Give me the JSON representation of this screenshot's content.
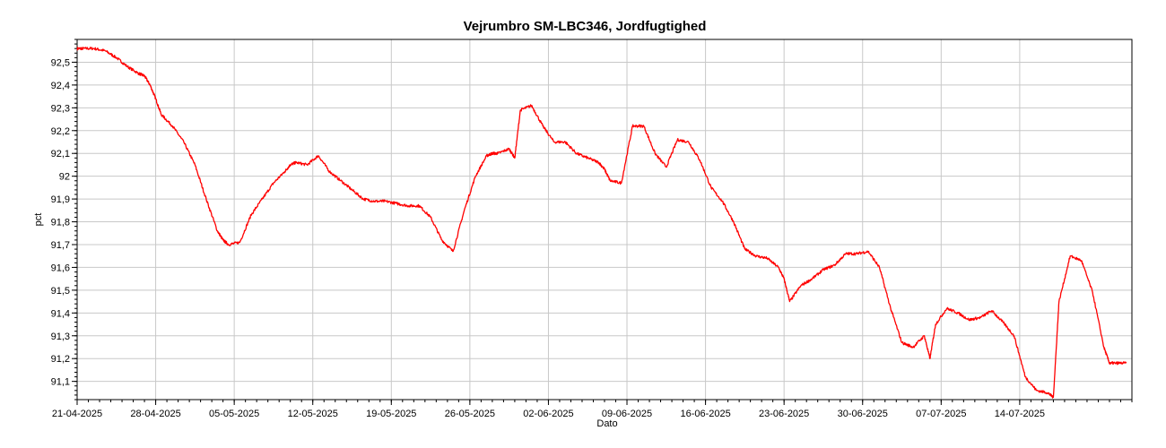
{
  "chart_data": {
    "type": "line",
    "title": "Vejrumbro SM-LBC346, Jordfugtighed",
    "xlabel": "Dato",
    "ylabel": "pct",
    "grid": true,
    "xlim": [
      "2025-04-21",
      "2025-07-24"
    ],
    "ylim": [
      91.02,
      92.6
    ],
    "x_ticks": [
      "21-04-2025",
      "28-04-2025",
      "05-05-2025",
      "12-05-2025",
      "19-05-2025",
      "26-05-2025",
      "02-06-2025",
      "09-06-2025",
      "16-06-2025",
      "23-06-2025",
      "30-06-2025",
      "07-07-2025",
      "14-07-2025"
    ],
    "y_ticks": [
      "91,1",
      "91,2",
      "91,3",
      "91,4",
      "91,5",
      "91,6",
      "91,7",
      "91,8",
      "91,9",
      "92",
      "92,1",
      "92,2",
      "92,3",
      "92,4",
      "92,5"
    ],
    "series": [
      {
        "color": "#ff0000",
        "x": [
          "2025-04-21T00:00",
          "2025-04-21T12:00",
          "2025-04-22T12:00",
          "2025-04-23T12:00",
          "2025-04-24T12:00",
          "2025-04-25T12:00",
          "2025-04-26T12:00",
          "2025-04-27T00:00",
          "2025-04-27T12:00",
          "2025-04-28T00:00",
          "2025-04-28T12:00",
          "2025-04-29T12:00",
          "2025-04-30T12:00",
          "2025-05-01T12:00",
          "2025-05-02T12:00",
          "2025-05-03T12:00",
          "2025-05-04T00:00",
          "2025-05-04T12:00",
          "2025-05-05T12:00",
          "2025-05-06T12:00",
          "2025-05-07T12:00",
          "2025-05-08T12:00",
          "2025-05-09T12:00",
          "2025-05-10T00:00",
          "2025-05-10T12:00",
          "2025-05-11T12:00",
          "2025-05-12T12:00",
          "2025-05-13T12:00",
          "2025-05-14T12:00",
          "2025-05-15T12:00",
          "2025-05-16T12:00",
          "2025-05-17T12:00",
          "2025-05-18T12:00",
          "2025-05-19T12:00",
          "2025-05-20T12:00",
          "2025-05-21T12:00",
          "2025-05-22T12:00",
          "2025-05-23T12:00",
          "2025-05-24T12:00",
          "2025-05-25T12:00",
          "2025-05-26T12:00",
          "2025-05-27T12:00",
          "2025-05-28T00:00",
          "2025-05-28T12:00",
          "2025-05-29T12:00",
          "2025-05-30T00:00",
          "2025-05-30T12:00",
          "2025-05-31T12:00",
          "2025-06-01T12:00",
          "2025-06-02T12:00",
          "2025-06-03T12:00",
          "2025-06-04T12:00",
          "2025-06-05T12:00",
          "2025-06-06T12:00",
          "2025-06-07T00:00",
          "2025-06-07T12:00",
          "2025-06-08T12:00",
          "2025-06-09T12:00",
          "2025-06-10T12:00",
          "2025-06-11T12:00",
          "2025-06-12T12:00",
          "2025-06-13T12:00",
          "2025-06-14T12:00",
          "2025-06-15T12:00",
          "2025-06-16T12:00",
          "2025-06-17T12:00",
          "2025-06-18T12:00",
          "2025-06-19T12:00",
          "2025-06-20T12:00",
          "2025-06-21T12:00",
          "2025-06-22T12:00",
          "2025-06-23T00:00",
          "2025-06-23T12:00",
          "2025-06-24T12:00",
          "2025-06-25T12:00",
          "2025-06-26T12:00",
          "2025-06-27T12:00",
          "2025-06-28T12:00",
          "2025-06-29T12:00",
          "2025-06-30T12:00",
          "2025-07-01T12:00",
          "2025-07-02T12:00",
          "2025-07-03T12:00",
          "2025-07-04T12:00",
          "2025-07-05T12:00",
          "2025-07-06T00:00",
          "2025-07-06T12:00",
          "2025-07-07T12:00",
          "2025-07-08T12:00",
          "2025-07-09T12:00",
          "2025-07-10T12:00",
          "2025-07-11T12:00",
          "2025-07-12T12:00",
          "2025-07-13T12:00",
          "2025-07-14T12:00",
          "2025-07-15T12:00",
          "2025-07-16T12:00",
          "2025-07-17T00:00",
          "2025-07-17T12:00",
          "2025-07-18T12:00",
          "2025-07-19T12:00",
          "2025-07-20T12:00",
          "2025-07-21T12:00",
          "2025-07-22T00:00",
          "2025-07-22T12:00",
          "2025-07-23T12:00"
        ],
        "y": [
          92.56,
          92.56,
          92.56,
          92.55,
          92.52,
          92.48,
          92.45,
          92.44,
          92.4,
          92.34,
          92.27,
          92.22,
          92.15,
          92.05,
          91.9,
          91.76,
          91.72,
          91.7,
          91.71,
          91.83,
          91.9,
          91.97,
          92.02,
          92.05,
          92.06,
          92.05,
          92.09,
          92.02,
          91.98,
          91.94,
          91.9,
          91.89,
          91.89,
          91.88,
          91.87,
          91.87,
          91.82,
          91.72,
          91.67,
          91.85,
          92.0,
          92.09,
          92.1,
          92.1,
          92.12,
          92.08,
          92.29,
          92.31,
          92.22,
          92.15,
          92.15,
          92.1,
          92.08,
          92.06,
          92.03,
          91.98,
          91.97,
          92.22,
          92.22,
          92.1,
          92.04,
          92.16,
          92.15,
          92.07,
          91.95,
          91.89,
          91.8,
          91.68,
          91.65,
          91.64,
          91.6,
          91.55,
          91.45,
          91.52,
          91.55,
          91.59,
          91.61,
          91.66,
          91.66,
          91.67,
          91.6,
          91.42,
          91.27,
          91.25,
          91.3,
          91.2,
          91.35,
          91.42,
          91.4,
          91.37,
          91.38,
          91.41,
          91.36,
          91.3,
          91.12,
          91.06,
          91.05,
          91.03,
          91.45,
          91.65,
          91.63,
          91.49,
          91.25,
          91.18,
          91.18,
          91.18
        ]
      }
    ]
  }
}
